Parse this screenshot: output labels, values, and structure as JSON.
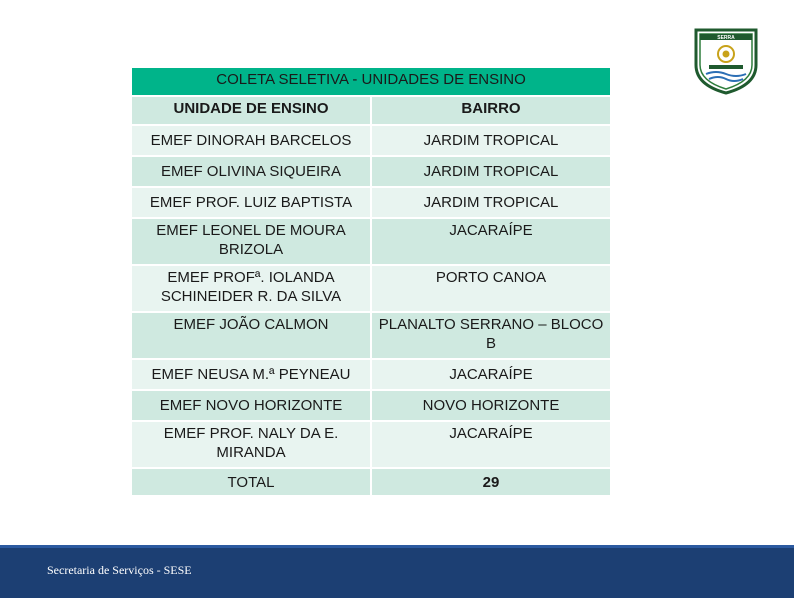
{
  "logo": {
    "icon": "serra-city-crest-icon",
    "text": "SERRA"
  },
  "table": {
    "title": "COLETA SELETIVA - UNIDADES DE ENSINO",
    "headers": [
      "UNIDADE DE ENSINO",
      "BAIRRO"
    ],
    "rows": [
      {
        "unidade": "EMEF DINORAH BARCELOS",
        "bairro": "JARDIM TROPICAL"
      },
      {
        "unidade": "EMEF OLIVINA SIQUEIRA",
        "bairro": "JARDIM TROPICAL"
      },
      {
        "unidade": "EMEF PROF. LUIZ BAPTISTA",
        "bairro": "JARDIM TROPICAL"
      },
      {
        "unidade": "EMEF LEONEL DE MOURA BRIZOLA",
        "bairro": "JACARAÍPE"
      },
      {
        "unidade": "EMEF PROFª. IOLANDA SCHINEIDER R. DA SILVA",
        "bairro": "PORTO CANOA"
      },
      {
        "unidade": "EMEF JOÃO CALMON",
        "bairro": "PLANALTO SERRANO – BLOCO B"
      },
      {
        "unidade": "EMEF NEUSA M.ª PEYNEAU",
        "bairro": "JACARAÍPE"
      },
      {
        "unidade": "EMEF NOVO HORIZONTE",
        "bairro": "NOVO HORIZONTE"
      },
      {
        "unidade": "EMEF PROF. NALY DA E. MIRANDA",
        "bairro": "JACARAÍPE"
      }
    ],
    "total_label": "TOTAL",
    "total_value": "29"
  },
  "footer": {
    "text": "Secretaria de Serviços - SESE"
  },
  "colors": {
    "title_bg": "#00b48a",
    "row_dark": "#cfe9e0",
    "row_light": "#e8f4f0",
    "footer_bg": "#1c3f73"
  }
}
